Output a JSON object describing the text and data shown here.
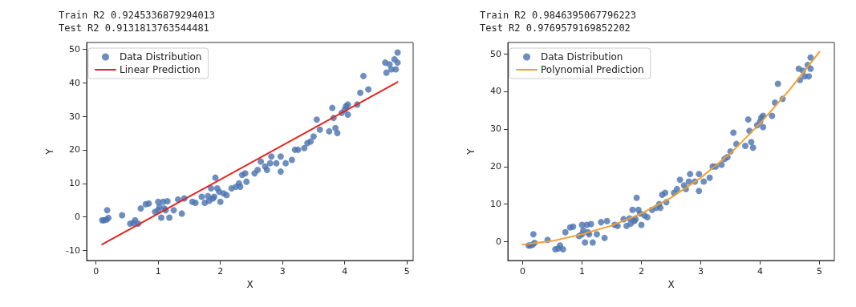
{
  "chart_data": [
    {
      "type": "scatter",
      "title": "Train R2 0.9245336879294013",
      "subtitle": "Test R2 0.9131813763544481",
      "xlabel": "X",
      "ylabel": "Y",
      "xlim": [
        -0.15,
        5.1
      ],
      "xticks": [
        0,
        1,
        2,
        3,
        4,
        5
      ],
      "ylim": [
        -13,
        52
      ],
      "yticks": [
        -10,
        0,
        10,
        20,
        30,
        40,
        50
      ],
      "legend": "top left",
      "series": [
        {
          "name": "Data Distribution",
          "color": "#4a72b0",
          "marker": "circle",
          "x": [
            0.1,
            0.13,
            0.17,
            0.18,
            0.2,
            0.42,
            0.55,
            0.6,
            0.63,
            0.68,
            0.72,
            0.8,
            0.85,
            0.95,
            1.0,
            1.0,
            1.02,
            1.05,
            1.08,
            1.1,
            1.12,
            1.15,
            1.18,
            1.25,
            1.32,
            1.38,
            1.42,
            1.55,
            1.6,
            1.7,
            1.75,
            1.8,
            1.82,
            1.85,
            1.88,
            1.9,
            1.92,
            1.95,
            1.98,
            2.0,
            2.05,
            2.1,
            2.18,
            2.25,
            2.3,
            2.32,
            2.35,
            2.4,
            2.42,
            2.55,
            2.6,
            2.65,
            2.72,
            2.75,
            2.8,
            2.82,
            2.9,
            2.97,
            2.97,
            3.05,
            3.15,
            3.2,
            3.25,
            3.35,
            3.4,
            3.45,
            3.5,
            3.55,
            3.6,
            3.75,
            3.8,
            3.82,
            3.85,
            3.88,
            3.95,
            4.0,
            4.02,
            4.05,
            4.05,
            4.2,
            4.25,
            4.3,
            4.38,
            4.65,
            4.67,
            4.72,
            4.75,
            4.8,
            4.82,
            4.85,
            4.85
          ],
          "values": [
            -1,
            -1,
            -0.8,
            2,
            -0.3,
            0.5,
            -2,
            -1.8,
            -1,
            -2,
            2.5,
            3.8,
            4,
            1.5,
            4.5,
            2,
            3,
            -0.2,
            4.5,
            2.5,
            2,
            4.7,
            -0.2,
            2,
            5.2,
            1,
            5.5,
            4.5,
            4.2,
            6,
            4.2,
            6.2,
            4.8,
            8.5,
            5.5,
            6,
            11.7,
            8.5,
            7.5,
            4.5,
            7,
            6.5,
            8.5,
            9,
            10,
            9,
            12.5,
            13,
            10.5,
            13,
            14,
            16.5,
            15,
            14,
            16,
            18,
            16,
            13.5,
            18,
            16,
            17,
            20,
            20,
            20.5,
            22,
            22.5,
            24,
            29,
            26,
            25.5,
            32.5,
            29.5,
            26.5,
            25,
            31,
            32,
            33,
            30.5,
            33.5,
            33.5,
            37,
            42,
            38,
            46,
            43,
            45.5,
            44,
            47,
            44,
            49,
            46
          ]
        },
        {
          "type": "line",
          "name": "Linear Prediction",
          "color": "#e0261f",
          "marker": "none",
          "line_style": "solid",
          "x": [
            0.1,
            4.85
          ],
          "values": [
            -8.2,
            40.2
          ]
        }
      ]
    },
    {
      "type": "scatter",
      "title": "Train R2 0.9846395067796223",
      "subtitle": "Test R2 0.9769579169852202",
      "xlabel": "X",
      "ylabel": "Y",
      "xlim": [
        -0.25,
        5.25
      ],
      "xticks": [
        0,
        1,
        2,
        3,
        4,
        5
      ],
      "ylim": [
        -5,
        53
      ],
      "yticks": [
        0,
        10,
        20,
        30,
        40,
        50
      ],
      "legend": "top left",
      "series": [
        {
          "name": "Data Distribution",
          "color": "#4a72b0",
          "marker": "circle",
          "x": [
            0.1,
            0.13,
            0.17,
            0.18,
            0.2,
            0.42,
            0.55,
            0.6,
            0.63,
            0.68,
            0.72,
            0.8,
            0.85,
            0.95,
            1.0,
            1.0,
            1.02,
            1.05,
            1.08,
            1.1,
            1.12,
            1.15,
            1.18,
            1.25,
            1.32,
            1.38,
            1.42,
            1.55,
            1.6,
            1.7,
            1.75,
            1.8,
            1.82,
            1.85,
            1.88,
            1.9,
            1.92,
            1.95,
            1.98,
            2.0,
            2.05,
            2.1,
            2.18,
            2.25,
            2.3,
            2.32,
            2.35,
            2.4,
            2.42,
            2.55,
            2.6,
            2.65,
            2.72,
            2.75,
            2.8,
            2.82,
            2.9,
            2.97,
            2.97,
            3.05,
            3.15,
            3.2,
            3.25,
            3.35,
            3.4,
            3.45,
            3.5,
            3.55,
            3.6,
            3.75,
            3.8,
            3.82,
            3.85,
            3.88,
            3.95,
            4.0,
            4.02,
            4.05,
            4.05,
            4.2,
            4.25,
            4.3,
            4.38,
            4.65,
            4.67,
            4.72,
            4.75,
            4.8,
            4.82,
            4.85,
            4.85
          ],
          "values": [
            -1,
            -1,
            -0.8,
            2,
            -0.3,
            0.5,
            -2,
            -1.8,
            -1,
            -2,
            2.5,
            3.8,
            4,
            1.5,
            4.5,
            2,
            3,
            -0.2,
            4.5,
            2.5,
            2,
            4.7,
            -0.2,
            2,
            5.2,
            1,
            5.5,
            4.5,
            4.2,
            6,
            4.2,
            6.2,
            4.8,
            8.5,
            5.5,
            6,
            11.7,
            8.5,
            7.5,
            4.5,
            7,
            6.5,
            8.5,
            9,
            10,
            9,
            12.5,
            13,
            10.5,
            13,
            14,
            16.5,
            15,
            14,
            16,
            18,
            16,
            13.5,
            18,
            16,
            17,
            20,
            20,
            20.5,
            22,
            22.5,
            24,
            29,
            26,
            25.5,
            32.5,
            29.5,
            26.5,
            25,
            31,
            32,
            33,
            30.5,
            33.5,
            33.5,
            37,
            42,
            38,
            46,
            43,
            45.5,
            44,
            47,
            44,
            49,
            46
          ]
        },
        {
          "type": "line",
          "name": "Polynomial Prediction",
          "color": "#f0a030",
          "marker": "none",
          "line_style": "solid",
          "x": [
            0,
            0.5,
            1,
            1.5,
            2,
            2.5,
            3,
            3.5,
            4,
            4.5,
            5
          ],
          "values": [
            -0.8,
            0.2,
            2,
            4.3,
            7.5,
            11.7,
            17,
            23.5,
            31.5,
            40.5,
            50.5
          ]
        }
      ]
    }
  ]
}
